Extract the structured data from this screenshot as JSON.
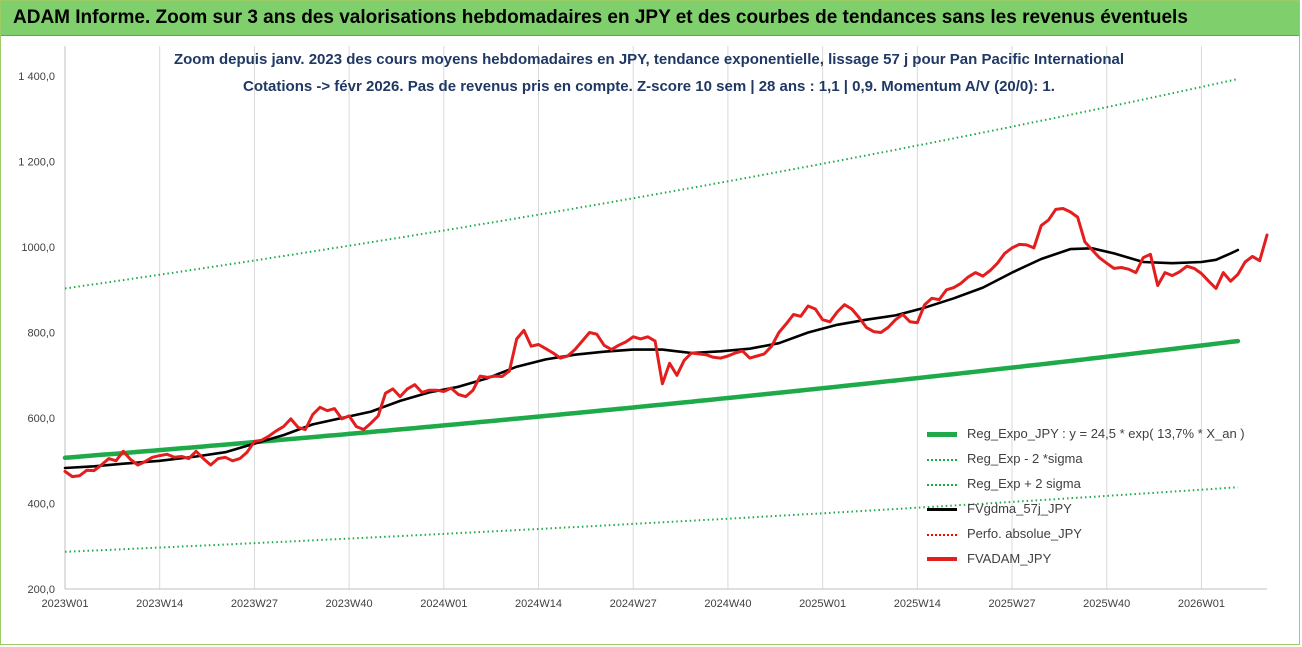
{
  "header": {
    "title": "ADAM Informe. Zoom sur 3 ans des valorisations hebdomadaires en JPY et des courbes de tendances sans les revenus éventuels"
  },
  "chart_data": {
    "type": "line",
    "title": "Zoom depuis janv. 2023 des cours moyens hebdomadaires en JPY, tendance exponentielle, lissage 57 j pour Pan Pacific International",
    "subtitle": "Cotations -> févr 2026.  Pas de revenus pris en compte. Z-score 10 sem | 28 ans : 1,1 | 0,9. Momentum A/V (20/0): 1.",
    "xlabel": "",
    "ylabel": "",
    "ylim": [
      200,
      1400
    ],
    "yticks": [
      200,
      400,
      600,
      800,
      1000,
      1200,
      1400
    ],
    "ytick_labels": [
      "200,0",
      "400,0",
      "600,0",
      "800,0",
      "1000,0",
      "1 200,0",
      "1 400,0"
    ],
    "xlim": [
      0,
      161
    ],
    "xticks": [
      0,
      13,
      26,
      39,
      52,
      65,
      78,
      91,
      104,
      117,
      130,
      143,
      156
    ],
    "xtick_labels": [
      "2023W01",
      "2023W14",
      "2023W27",
      "2023W40",
      "2024W01",
      "2024W14",
      "2024W27",
      "2024W40",
      "2025W01",
      "2025W14",
      "2025W27",
      "2025W40",
      "2026W01"
    ],
    "grid": "vertical",
    "legend_position": "bottom-right",
    "series": [
      {
        "name": "Reg_Expo_JPY : y = 24,5 * exp( 13,7% *  X_an )",
        "color": "#1faa4a",
        "style": "solid-thick",
        "start": 507,
        "end": 780
      },
      {
        "name": "Reg_Exp - 2 *sigma",
        "color": "#1faa4a",
        "style": "dotted",
        "start": 287,
        "end": 438
      },
      {
        "name": "Reg_Exp + 2 sigma",
        "color": "#1faa4a",
        "style": "dotted",
        "start": 903,
        "end": 1393
      },
      {
        "name": "FVgdma_57j_JPY",
        "color": "#000000",
        "style": "solid",
        "points": [
          [
            0,
            483
          ],
          [
            4,
            487
          ],
          [
            8,
            493
          ],
          [
            13,
            500
          ],
          [
            18,
            510
          ],
          [
            22,
            520
          ],
          [
            26,
            540
          ],
          [
            30,
            560
          ],
          [
            34,
            585
          ],
          [
            38,
            600
          ],
          [
            42,
            615
          ],
          [
            46,
            640
          ],
          [
            50,
            660
          ],
          [
            54,
            673
          ],
          [
            58,
            693
          ],
          [
            62,
            720
          ],
          [
            66,
            737
          ],
          [
            70,
            748
          ],
          [
            74,
            755
          ],
          [
            78,
            760
          ],
          [
            82,
            760
          ],
          [
            84,
            756
          ],
          [
            86,
            752
          ],
          [
            90,
            756
          ],
          [
            94,
            762
          ],
          [
            98,
            775
          ],
          [
            102,
            800
          ],
          [
            106,
            818
          ],
          [
            110,
            830
          ],
          [
            114,
            840
          ],
          [
            118,
            858
          ],
          [
            122,
            880
          ],
          [
            126,
            905
          ],
          [
            130,
            940
          ],
          [
            134,
            972
          ],
          [
            138,
            995
          ],
          [
            141,
            997
          ],
          [
            144,
            985
          ],
          [
            148,
            965
          ],
          [
            152,
            962
          ],
          [
            156,
            965
          ],
          [
            158,
            970
          ],
          [
            160,
            985
          ],
          [
            161,
            993
          ]
        ]
      },
      {
        "name": "Perfo. absolue_JPY",
        "color": "#ff0000",
        "style": "dotted",
        "points": []
      },
      {
        "name": "FVADAM_JPY",
        "color": "#e41e1e",
        "style": "solid-thick",
        "points": [
          [
            0,
            475
          ],
          [
            1,
            463
          ],
          [
            2,
            465
          ],
          [
            3,
            478
          ],
          [
            4,
            477
          ],
          [
            5,
            490
          ],
          [
            6,
            505
          ],
          [
            7,
            500
          ],
          [
            8,
            522
          ],
          [
            9,
            503
          ],
          [
            10,
            490
          ],
          [
            11,
            498
          ],
          [
            12,
            508
          ],
          [
            13,
            512
          ],
          [
            14,
            515
          ],
          [
            15,
            508
          ],
          [
            16,
            510
          ],
          [
            17,
            505
          ],
          [
            18,
            522
          ],
          [
            19,
            505
          ],
          [
            20,
            490
          ],
          [
            21,
            505
          ],
          [
            22,
            508
          ],
          [
            23,
            500
          ],
          [
            24,
            505
          ],
          [
            25,
            520
          ],
          [
            26,
            545
          ],
          [
            27,
            548
          ],
          [
            28,
            558
          ],
          [
            29,
            570
          ],
          [
            30,
            580
          ],
          [
            31,
            598
          ],
          [
            32,
            578
          ],
          [
            33,
            573
          ],
          [
            34,
            608
          ],
          [
            35,
            625
          ],
          [
            36,
            617
          ],
          [
            37,
            622
          ],
          [
            38,
            598
          ],
          [
            39,
            605
          ],
          [
            40,
            580
          ],
          [
            41,
            573
          ],
          [
            42,
            588
          ],
          [
            43,
            605
          ],
          [
            44,
            658
          ],
          [
            45,
            668
          ],
          [
            46,
            650
          ],
          [
            47,
            668
          ],
          [
            48,
            678
          ],
          [
            49,
            660
          ],
          [
            50,
            665
          ],
          [
            51,
            665
          ],
          [
            52,
            662
          ],
          [
            53,
            670
          ],
          [
            54,
            655
          ],
          [
            55,
            650
          ],
          [
            56,
            665
          ],
          [
            57,
            698
          ],
          [
            58,
            695
          ],
          [
            59,
            698
          ],
          [
            60,
            697
          ],
          [
            61,
            710
          ],
          [
            62,
            785
          ],
          [
            63,
            805
          ],
          [
            64,
            768
          ],
          [
            65,
            772
          ],
          [
            66,
            762
          ],
          [
            67,
            752
          ],
          [
            68,
            740
          ],
          [
            69,
            745
          ],
          [
            70,
            760
          ],
          [
            71,
            780
          ],
          [
            72,
            800
          ],
          [
            73,
            796
          ],
          [
            74,
            770
          ],
          [
            75,
            760
          ],
          [
            76,
            770
          ],
          [
            77,
            778
          ],
          [
            78,
            790
          ],
          [
            79,
            785
          ],
          [
            80,
            790
          ],
          [
            81,
            780
          ],
          [
            82,
            680
          ],
          [
            83,
            728
          ],
          [
            84,
            700
          ],
          [
            85,
            735
          ],
          [
            86,
            752
          ],
          [
            87,
            750
          ],
          [
            88,
            748
          ],
          [
            89,
            742
          ],
          [
            90,
            740
          ],
          [
            91,
            745
          ],
          [
            92,
            752
          ],
          [
            93,
            757
          ],
          [
            94,
            740
          ],
          [
            95,
            745
          ],
          [
            96,
            750
          ],
          [
            97,
            768
          ],
          [
            98,
            800
          ],
          [
            99,
            820
          ],
          [
            100,
            842
          ],
          [
            101,
            838
          ],
          [
            102,
            862
          ],
          [
            103,
            855
          ],
          [
            104,
            830
          ],
          [
            105,
            825
          ],
          [
            106,
            848
          ],
          [
            107,
            865
          ],
          [
            108,
            855
          ],
          [
            109,
            835
          ],
          [
            110,
            812
          ],
          [
            111,
            802
          ],
          [
            112,
            800
          ],
          [
            113,
            812
          ],
          [
            114,
            830
          ],
          [
            115,
            842
          ],
          [
            116,
            825
          ],
          [
            117,
            823
          ],
          [
            118,
            865
          ],
          [
            119,
            880
          ],
          [
            120,
            877
          ],
          [
            121,
            900
          ],
          [
            122,
            905
          ],
          [
            123,
            915
          ],
          [
            124,
            930
          ],
          [
            125,
            940
          ],
          [
            126,
            932
          ],
          [
            127,
            945
          ],
          [
            128,
            962
          ],
          [
            129,
            985
          ],
          [
            130,
            998
          ],
          [
            131,
            1006
          ],
          [
            132,
            1005
          ],
          [
            133,
            998
          ],
          [
            134,
            1050
          ],
          [
            135,
            1063
          ],
          [
            136,
            1088
          ],
          [
            137,
            1090
          ],
          [
            138,
            1082
          ],
          [
            139,
            1070
          ],
          [
            140,
            1012
          ],
          [
            141,
            993
          ],
          [
            142,
            975
          ],
          [
            143,
            962
          ],
          [
            144,
            950
          ],
          [
            145,
            952
          ],
          [
            146,
            948
          ],
          [
            147,
            940
          ],
          [
            148,
            975
          ],
          [
            149,
            983
          ],
          [
            150,
            910
          ],
          [
            151,
            940
          ],
          [
            152,
            933
          ],
          [
            153,
            942
          ],
          [
            154,
            955
          ],
          [
            155,
            950
          ],
          [
            156,
            938
          ],
          [
            157,
            920
          ],
          [
            158,
            903
          ],
          [
            159,
            940
          ],
          [
            160,
            920
          ],
          [
            161,
            936
          ],
          [
            162,
            965
          ],
          [
            163,
            978
          ],
          [
            164,
            968
          ],
          [
            165,
            1028
          ]
        ]
      }
    ]
  }
}
